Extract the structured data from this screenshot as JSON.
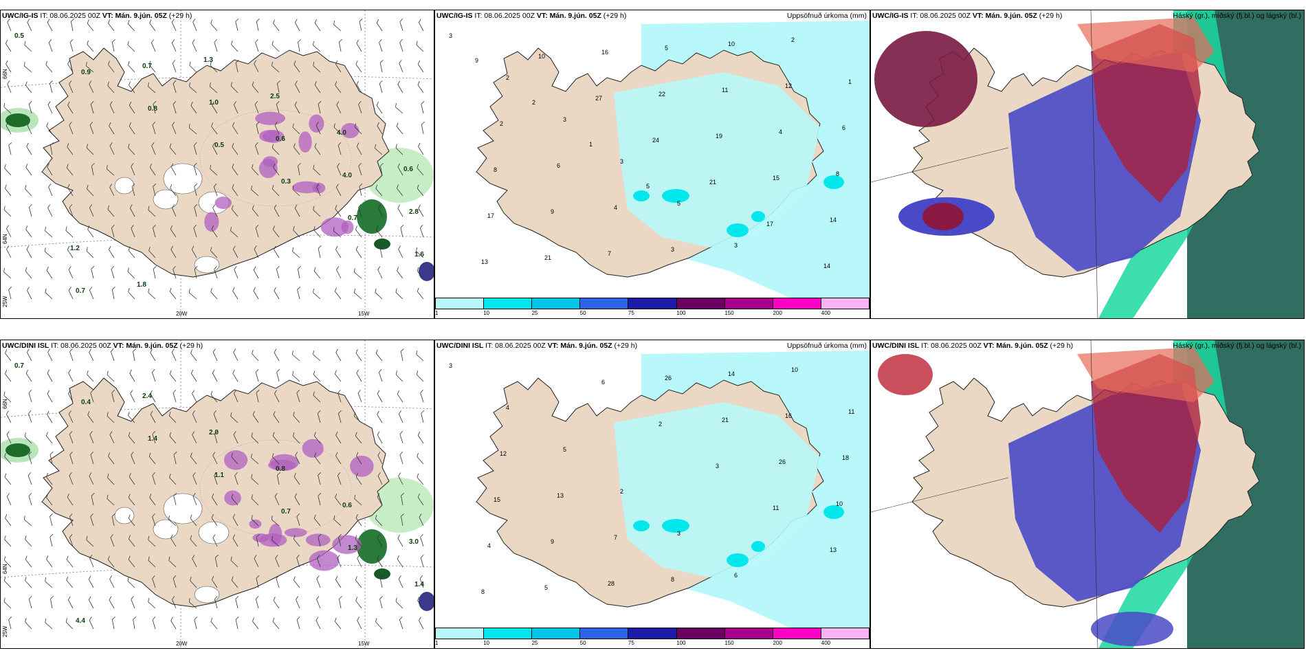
{
  "panels": [
    {
      "model": "UWC/IG-IS",
      "it": "IT: 08.06.2025 00Z",
      "vt": "VT: Mán. 9.jún. 05Z",
      "lead": "(+29 h)",
      "right": ""
    },
    {
      "model": "UWC/IG-IS",
      "it": "IT: 08.06.2025 00Z",
      "vt": "VT: Mán. 9.jún. 05Z",
      "lead": "(+29 h)",
      "right": "Uppsöfnuð úrkoma (mm)"
    },
    {
      "model": "UWC/IG-IS",
      "it": "IT: 08.06.2025 00Z",
      "vt": "VT: Mán. 9.jún. 05Z",
      "lead": "(+29 h)",
      "right": "Háský (gr.), miðský (fj.bl.) og lágský (bl.)"
    },
    {
      "model": "UWC/DINI ISL",
      "it": "IT: 08.06.2025 00Z",
      "vt": "VT: Mán. 9.jún. 05Z",
      "lead": "(+29 h)",
      "right": ""
    },
    {
      "model": "UWC/DINI ISL",
      "it": "IT: 08.06.2025 00Z",
      "vt": "VT: Mán. 9.jún. 05Z",
      "lead": "(+29 h)",
      "right": "Uppsöfnuð úrkoma (mm)"
    },
    {
      "model": "UWC/DINI ISL",
      "it": "IT: 08.06.2025 00Z",
      "vt": "VT: Mán. 9.jún. 05Z",
      "lead": "(+29 h)",
      "right": "Háský (gr.), miðský (fj.bl.) og lágský (bl.)"
    }
  ],
  "axis_labels": {
    "lon_20": "20W",
    "lon_15": "15W",
    "lat_66": "66N",
    "lat_64": "64N",
    "lon_25": "25W"
  },
  "legend": {
    "ticks": [
      "1",
      "10",
      "25",
      "50",
      "75",
      "100",
      "150",
      "200",
      "400"
    ],
    "colors": [
      "#b8f8fa",
      "#00e8ec",
      "#00c4e8",
      "#2c64e6",
      "#1c1ca8",
      "#6a0060",
      "#a8008c",
      "#ff00c8",
      "#f6b4f4"
    ]
  },
  "precip_values_top": [
    "3",
    "2",
    "3",
    "3",
    "5",
    "3",
    "2",
    "1",
    "2",
    "6",
    "4",
    "3",
    "10",
    "12",
    "6",
    "8",
    "9",
    "7",
    "5",
    "11",
    "4",
    "8",
    "17",
    "21",
    "16",
    "22",
    "19",
    "15",
    "14",
    "13",
    "10",
    "27",
    "24",
    "21",
    "17",
    "14",
    "9",
    "2",
    "1",
    "5"
  ],
  "precip_values_bottom": [
    "3",
    "4",
    "5",
    "2",
    "3",
    "6",
    "10",
    "11",
    "12",
    "13",
    "7",
    "8",
    "14",
    "16",
    "18",
    "15",
    "9",
    "28",
    "26",
    "21",
    "26",
    "10",
    "4",
    "5",
    "6",
    "2",
    "3",
    "11",
    "13",
    "8"
  ],
  "wind_values_top": [
    "0.5",
    "0.9",
    "0.8",
    "0.5",
    "0.3",
    "0.7",
    "1.6",
    "0.7",
    "0.7",
    "1.0",
    "0.6",
    "4.0",
    "2.8",
    "1.2",
    "1.8",
    "1.3",
    "2.5",
    "4.0",
    "0.6"
  ],
  "wind_values_bottom": [
    "0.7",
    "0.4",
    "1.4",
    "1.1",
    "0.7",
    "1.3",
    "1.4",
    "4.4",
    "2.4",
    "2.0",
    "0.8",
    "0.6",
    "3.0"
  ]
}
